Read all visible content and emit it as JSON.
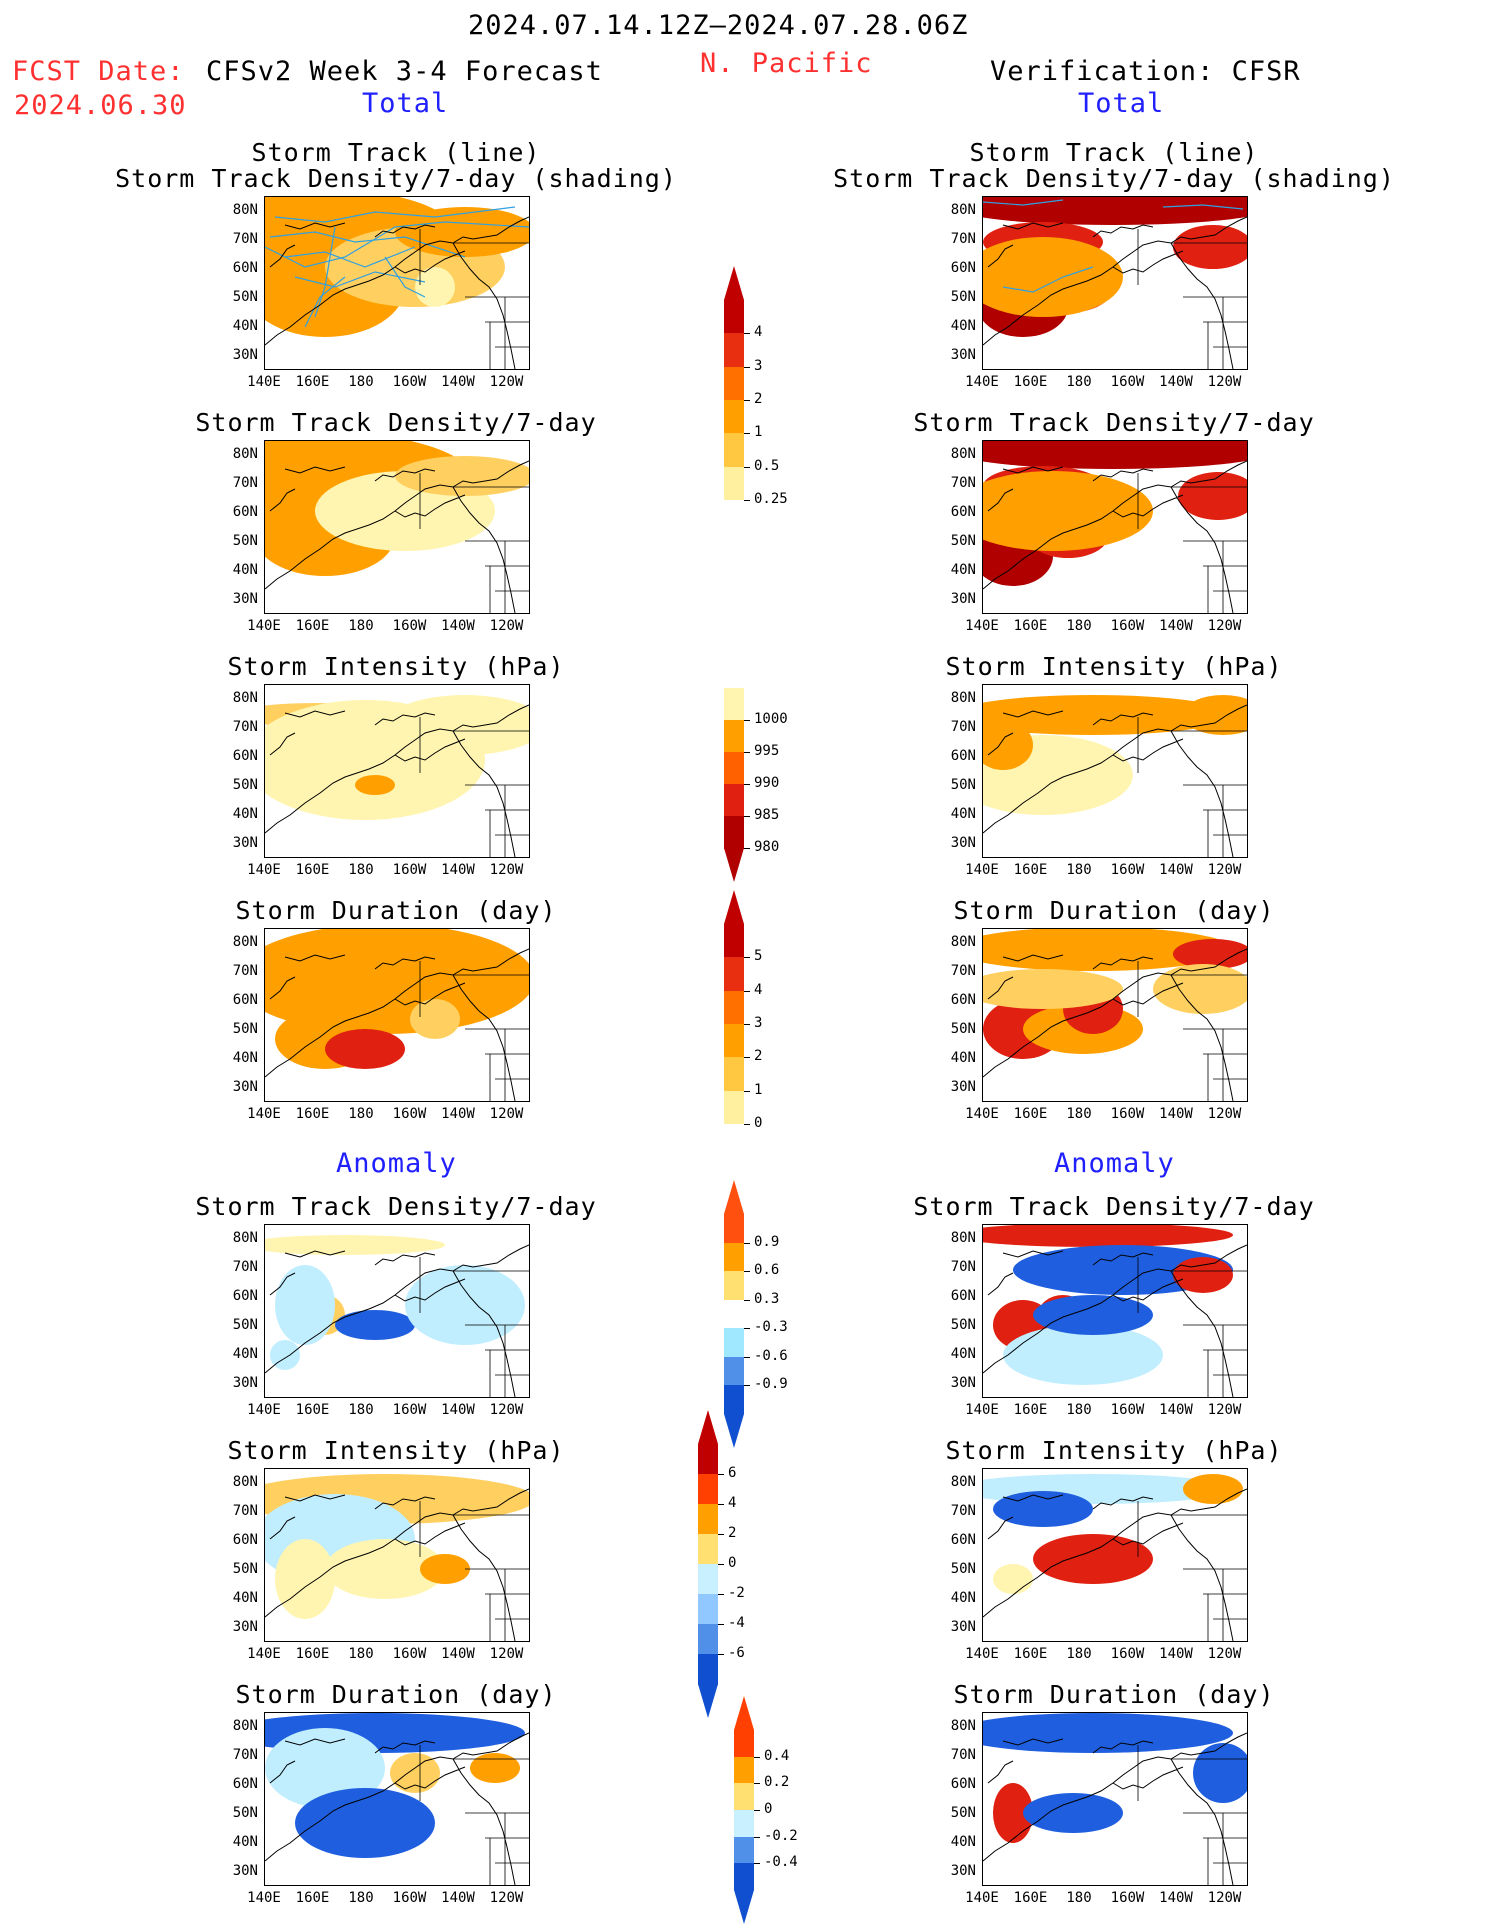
{
  "header": {
    "period": "2024.07.14.12Z–2024.07.28.06Z",
    "region": "N. Pacific",
    "fcst_label": "FCST Date:",
    "fcst_date": "2024.06.30",
    "left_title": "CFSv2 Week 3-4 Forecast",
    "right_title": "Verification: CFSR",
    "total_label": "Total",
    "anomaly_label": "Anomaly"
  },
  "panel_titles": {
    "track_line": "Storm Track (line)",
    "track_shading": "Storm Track Density/7-day (shading)",
    "density": "Storm Track Density/7-day",
    "intensity": "Storm Intensity (hPa)",
    "duration": "Storm Duration (day)"
  },
  "axes": {
    "lat_labels": [
      "80N",
      "70N",
      "60N",
      "50N",
      "40N",
      "30N"
    ],
    "lon_labels": [
      "140E",
      "160E",
      "180",
      "160W",
      "140W",
      "120W"
    ]
  },
  "colorbars": {
    "density_total": {
      "labels": [
        "4",
        "3",
        "2",
        "1",
        "0.5",
        "0.25"
      ],
      "colors": [
        "#c00000",
        "#e83010",
        "#ff7000",
        "#ffa000",
        "#ffc840",
        "#fff0a0"
      ]
    },
    "intensity_total": {
      "labels": [
        "1000",
        "995",
        "990",
        "985",
        "980"
      ],
      "colors": [
        "#fff5b0",
        "#ffa000",
        "#ff6000",
        "#e02010",
        "#b00000"
      ]
    },
    "duration_total": {
      "labels": [
        "5",
        "4",
        "3",
        "2",
        "1",
        "0"
      ],
      "colors": [
        "#c00000",
        "#e83010",
        "#ff7000",
        "#ffa000",
        "#ffc840",
        "#fff0a0"
      ]
    },
    "density_anom": {
      "labels": [
        "0.9",
        "0.6",
        "0.3",
        "-0.3",
        "-0.6",
        "-0.9"
      ],
      "colors": [
        "#ff5010",
        "#ffa000",
        "#ffe070",
        "#ffffff",
        "#a0e8ff",
        "#5090e8",
        "#1050d0"
      ]
    },
    "intensity_anom": {
      "labels": [
        "6",
        "4",
        "2",
        "0",
        "-2",
        "-4",
        "-6"
      ],
      "colors": [
        "#c00000",
        "#ff4000",
        "#ffa000",
        "#ffe070",
        "#c8f0ff",
        "#90c8ff",
        "#5090e8",
        "#1050d0"
      ]
    },
    "duration_anom": {
      "labels": [
        "0.4",
        "0.2",
        "0",
        "-0.2",
        "-0.4"
      ],
      "colors": [
        "#ff4000",
        "#ffa000",
        "#ffe070",
        "#c8f0ff",
        "#5090e8",
        "#1050d0"
      ]
    }
  },
  "palette": {
    "light_yellow": "#fff5b0",
    "yellow": "#ffd060",
    "orange": "#ffa000",
    "dark_orange": "#ff6000",
    "red": "#e02010",
    "dark_red": "#b00000",
    "light_blue": "#c0eeff",
    "blue": "#1f5fdf",
    "track_line": "#30a0e0"
  }
}
